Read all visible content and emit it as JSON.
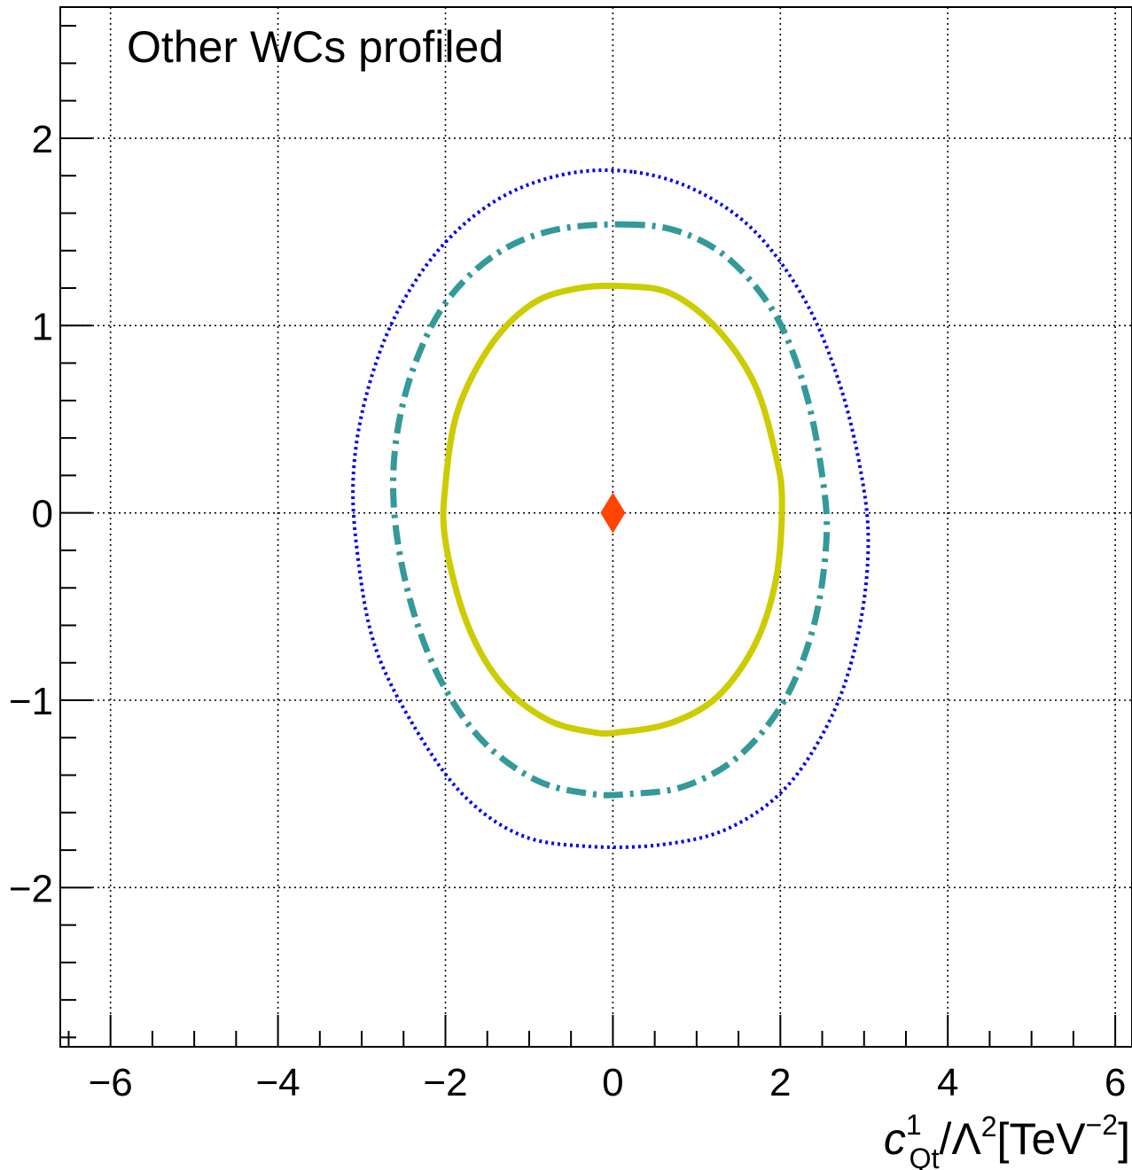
{
  "chart_data": {
    "type": "contour",
    "annotation": "Other WCs profiled",
    "xlabel": {
      "var": "c",
      "sup": "1",
      "sub": "Qt",
      "mid": "/Λ",
      "mid_sup": "2",
      "unit": "[TeV",
      "unit_sup": "−2",
      "unit_end": "]"
    },
    "ylabel": "",
    "xlim": [
      -6.6,
      6.2
    ],
    "ylim": [
      -2.85,
      2.7
    ],
    "x_ticks": [
      {
        "v": -6,
        "label": "−6"
      },
      {
        "v": -4,
        "label": "−4"
      },
      {
        "v": -2,
        "label": "−2"
      },
      {
        "v": 0,
        "label": "0"
      },
      {
        "v": 2,
        "label": "2"
      },
      {
        "v": 4,
        "label": "4"
      },
      {
        "v": 6,
        "label": "6"
      }
    ],
    "y_ticks": [
      {
        "v": -2,
        "label": "−2"
      },
      {
        "v": -1,
        "label": "−1"
      },
      {
        "v": 0,
        "label": "0"
      },
      {
        "v": 1,
        "label": "1"
      },
      {
        "v": 2,
        "label": "2"
      }
    ],
    "grid": true,
    "series": [
      {
        "style": "dotted",
        "color": "#0000ee",
        "points": [
          [
            0.25,
            1.82
          ],
          [
            1.0,
            1.72
          ],
          [
            1.7,
            1.5
          ],
          [
            2.3,
            1.13
          ],
          [
            2.7,
            0.7
          ],
          [
            2.95,
            0.25
          ],
          [
            3.05,
            -0.15
          ],
          [
            2.95,
            -0.6
          ],
          [
            2.65,
            -1.05
          ],
          [
            2.1,
            -1.45
          ],
          [
            1.4,
            -1.68
          ],
          [
            0.6,
            -1.77
          ],
          [
            -0.3,
            -1.78
          ],
          [
            -1.1,
            -1.72
          ],
          [
            -1.8,
            -1.5
          ],
          [
            -2.4,
            -1.12
          ],
          [
            -2.85,
            -0.7
          ],
          [
            -3.05,
            -0.22
          ],
          [
            -3.1,
            0.2
          ],
          [
            -2.95,
            0.62
          ],
          [
            -2.6,
            1.05
          ],
          [
            -2.05,
            1.42
          ],
          [
            -1.35,
            1.68
          ],
          [
            -0.55,
            1.81
          ]
        ]
      },
      {
        "style": "dashdot",
        "color": "#339999",
        "points": [
          [
            0.15,
            1.54
          ],
          [
            0.8,
            1.5
          ],
          [
            1.4,
            1.35
          ],
          [
            1.95,
            1.05
          ],
          [
            2.3,
            0.65
          ],
          [
            2.5,
            0.2
          ],
          [
            2.55,
            -0.15
          ],
          [
            2.4,
            -0.6
          ],
          [
            2.05,
            -1.0
          ],
          [
            1.5,
            -1.3
          ],
          [
            0.85,
            -1.46
          ],
          [
            0.2,
            -1.5
          ],
          [
            -0.25,
            -1.5
          ],
          [
            -0.9,
            -1.43
          ],
          [
            -1.55,
            -1.22
          ],
          [
            -2.05,
            -0.9
          ],
          [
            -2.4,
            -0.5
          ],
          [
            -2.6,
            -0.05
          ],
          [
            -2.6,
            0.35
          ],
          [
            -2.4,
            0.75
          ],
          [
            -2.0,
            1.12
          ],
          [
            -1.4,
            1.38
          ],
          [
            -0.7,
            1.51
          ]
        ]
      },
      {
        "style": "solid",
        "color": "#cccc00",
        "points": [
          [
            0.15,
            1.21
          ],
          [
            0.7,
            1.17
          ],
          [
            1.25,
            0.98
          ],
          [
            1.7,
            0.68
          ],
          [
            1.95,
            0.3
          ],
          [
            2.02,
            0.05
          ],
          [
            1.95,
            -0.35
          ],
          [
            1.7,
            -0.7
          ],
          [
            1.25,
            -0.98
          ],
          [
            0.7,
            -1.12
          ],
          [
            0.1,
            -1.17
          ],
          [
            -0.25,
            -1.17
          ],
          [
            -0.8,
            -1.1
          ],
          [
            -1.35,
            -0.9
          ],
          [
            -1.75,
            -0.58
          ],
          [
            -2.0,
            -0.15
          ],
          [
            -2.0,
            0.15
          ],
          [
            -1.85,
            0.55
          ],
          [
            -1.45,
            0.9
          ],
          [
            -0.95,
            1.12
          ],
          [
            -0.4,
            1.2
          ]
        ]
      }
    ],
    "best_fit": {
      "x": 0,
      "y": 0,
      "marker": "diamond",
      "color": "#ff4400"
    }
  }
}
